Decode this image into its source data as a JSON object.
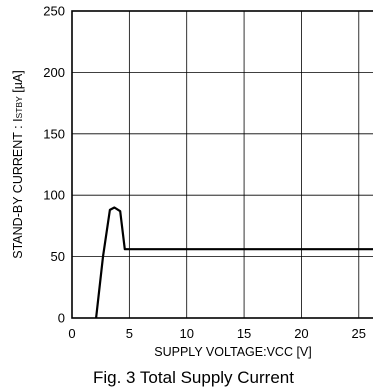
{
  "chart_data": {
    "type": "line",
    "xlabel": "SUPPLY VOLTAGE:VCC [V]",
    "ylabel_prefix": "STAND-BY CURRENT : I",
    "ylabel_sub": "STBY",
    "ylabel_suffix": " [µA]",
    "xlim": [
      0,
      26.5
    ],
    "ylim": [
      0,
      250
    ],
    "x_ticks": [
      0,
      5,
      10,
      15,
      20,
      25
    ],
    "x_tick_labels": [
      "0",
      "5",
      "10",
      "15",
      "20",
      "25"
    ],
    "y_ticks": [
      0,
      50,
      100,
      150,
      200,
      250
    ],
    "y_tick_labels": [
      "0",
      "50",
      "100",
      "150",
      "200",
      "250"
    ],
    "grid": true,
    "series": [
      {
        "x": [
          2.1,
          2.7,
          3.3,
          3.7,
          4.2,
          4.6,
          26.5
        ],
        "y": [
          0,
          50,
          88,
          90,
          87,
          56,
          56
        ]
      }
    ]
  },
  "caption": "Fig. 3   Total Supply Current"
}
